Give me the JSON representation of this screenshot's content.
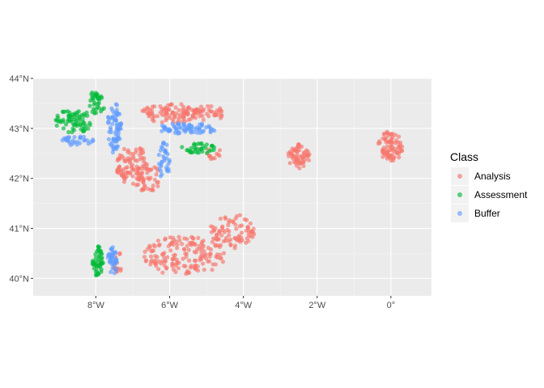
{
  "chart_data": {
    "type": "scatter",
    "title": "",
    "xlabel": "",
    "ylabel": "",
    "xlim": [
      -9.7,
      1.1
    ],
    "ylim": [
      39.65,
      44.0
    ],
    "x_ticks": [
      {
        "value": -8,
        "label": "8°W"
      },
      {
        "value": -6,
        "label": "6°W"
      },
      {
        "value": -4,
        "label": "4°W"
      },
      {
        "value": -2,
        "label": "2°W"
      },
      {
        "value": 0,
        "label": "0°"
      }
    ],
    "y_ticks": [
      {
        "value": 40,
        "label": "40°N"
      },
      {
        "value": 41,
        "label": "41°N"
      },
      {
        "value": 42,
        "label": "42°N"
      },
      {
        "value": 43,
        "label": "43°N"
      },
      {
        "value": 44,
        "label": "44°N"
      }
    ],
    "grid": true,
    "point_alpha": 0.65,
    "legend": {
      "title": "Class",
      "position": "right",
      "entries": [
        {
          "label": "Analysis",
          "color": "#F8766D"
        },
        {
          "label": "Assessment",
          "color": "#00BA38"
        },
        {
          "label": "Buffer",
          "color": "#619CFF"
        }
      ]
    },
    "series": [
      {
        "name": "Analysis",
        "color": "#F8766D",
        "clusters": [
          {
            "center": [
              -7.0,
              42.25
            ],
            "spread": [
              0.45,
              0.4
            ],
            "count": 90
          },
          {
            "center": [
              -6.6,
              42.0
            ],
            "spread": [
              0.35,
              0.3
            ],
            "count": 40
          },
          {
            "center": [
              -6.0,
              43.3
            ],
            "spread": [
              0.8,
              0.2
            ],
            "count": 90
          },
          {
            "center": [
              -5.0,
              43.3
            ],
            "spread": [
              0.5,
              0.15
            ],
            "count": 40
          },
          {
            "center": [
              -4.8,
              42.5
            ],
            "spread": [
              0.2,
              0.15
            ],
            "count": 12
          },
          {
            "center": [
              -2.5,
              42.45
            ],
            "spread": [
              0.3,
              0.25
            ],
            "count": 60
          },
          {
            "center": [
              0.0,
              42.65
            ],
            "spread": [
              0.35,
              0.3
            ],
            "count": 80
          },
          {
            "center": [
              -5.6,
              40.45
            ],
            "spread": [
              1.1,
              0.4
            ],
            "count": 160
          },
          {
            "center": [
              -4.3,
              40.95
            ],
            "spread": [
              0.6,
              0.35
            ],
            "count": 80
          },
          {
            "center": [
              -7.4,
              40.35
            ],
            "spread": [
              0.15,
              0.25
            ],
            "count": 15
          }
        ]
      },
      {
        "name": "Assessment",
        "color": "#00BA38",
        "clusters": [
          {
            "center": [
              -8.6,
              43.15
            ],
            "spread": [
              0.5,
              0.25
            ],
            "count": 70
          },
          {
            "center": [
              -8.0,
              43.5
            ],
            "spread": [
              0.25,
              0.25
            ],
            "count": 35
          },
          {
            "center": [
              -5.2,
              42.6
            ],
            "spread": [
              0.5,
              0.12
            ],
            "count": 35
          },
          {
            "center": [
              -7.95,
              40.35
            ],
            "spread": [
              0.15,
              0.3
            ],
            "count": 50
          }
        ]
      },
      {
        "name": "Buffer",
        "color": "#619CFF",
        "clusters": [
          {
            "center": [
              -7.5,
              43.0
            ],
            "spread": [
              0.2,
              0.5
            ],
            "count": 70
          },
          {
            "center": [
              -8.5,
              42.75
            ],
            "spread": [
              0.45,
              0.1
            ],
            "count": 30
          },
          {
            "center": [
              -5.5,
              43.0
            ],
            "spread": [
              0.8,
              0.12
            ],
            "count": 70
          },
          {
            "center": [
              -6.15,
              42.35
            ],
            "spread": [
              0.15,
              0.4
            ],
            "count": 35
          },
          {
            "center": [
              -7.55,
              40.35
            ],
            "spread": [
              0.13,
              0.28
            ],
            "count": 40
          }
        ]
      }
    ]
  }
}
